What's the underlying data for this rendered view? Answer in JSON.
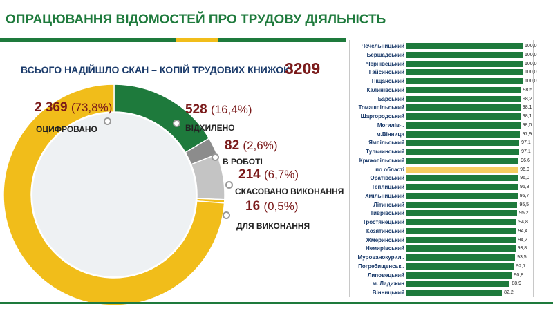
{
  "title": "ОПРАЦЮВАННЯ ВІДОМОСТЕЙ ПРО ТРУДОВУ ДІЯЛЬНІСТЬ",
  "total": {
    "label": "ВСЬОГО НАДІЙШЛО СКАН – КОПІЙ ТРУДОВИХ КНИЖОК",
    "value": "3209"
  },
  "colors": {
    "green": "#1e7a3c",
    "yellow": "#f1bd1a",
    "gray": "#8c8c8c",
    "lightgray": "#c4c4c4",
    "highlight": "#f6cd60",
    "title_bar": [
      "#1e7a3c",
      "#f1bd1a",
      "#1e7a3c"
    ]
  },
  "chart_data": [
    {
      "type": "pie",
      "variant": "donut",
      "slices": [
        {
          "label": "ОЦИФРОВАНО",
          "count": 2369,
          "count_text": "2 369",
          "percent": 73.8,
          "percent_text": "(73,8%)",
          "color": "#f1bd1a"
        },
        {
          "label": "ВІДХИЛЕНО",
          "count": 528,
          "count_text": "528",
          "percent": 16.4,
          "percent_text": "(16,4%)",
          "color": "#1e7a3c"
        },
        {
          "label": "В РОБОТІ",
          "count": 82,
          "count_text": "82",
          "percent": 2.6,
          "percent_text": "(2,6%)",
          "color": "#8c8c8c"
        },
        {
          "label": "СКАСОВАНО ВИКОНАННЯ",
          "count": 214,
          "count_text": "214",
          "percent": 6.7,
          "percent_text": "(6,7%)",
          "color": "#c4c4c4"
        },
        {
          "label": "ДЛЯ ВИКОНАННЯ",
          "count": 16,
          "count_text": "16",
          "percent": 0.5,
          "percent_text": "(0,5%)",
          "color": "#f1bd1a"
        }
      ]
    },
    {
      "type": "bar",
      "orientation": "horizontal",
      "xlim": [
        0,
        100
      ],
      "highlight": "по області",
      "categories": [
        "Чечельницький",
        "Бершадський",
        "Чернівецький",
        "Гайсинський",
        "Піщанський",
        "Калинівський",
        "Барський",
        "Томашпільський",
        "Шаргородський",
        "Могилів-..",
        "м.Вінниця",
        "Ямпільський",
        "Тульчинський",
        "Крижопільський",
        "по області",
        "Оратівський",
        "Теплицький",
        "Хмільницький",
        "Літинський",
        "Тиврівський",
        "Тростянецький",
        "Козятинський",
        "Жмеринський",
        "Немирівський",
        "Мурованокурил..",
        "Погребищенськ..",
        "Липовецький",
        "м. Ладижин",
        "Вінницький"
      ],
      "values": [
        100.0,
        100.0,
        100.0,
        100.0,
        100.0,
        98.5,
        98.2,
        98.1,
        98.1,
        98.0,
        97.9,
        97.1,
        97.1,
        96.6,
        96.0,
        96.0,
        95.8,
        95.7,
        95.5,
        95.2,
        94.8,
        94.4,
        94.2,
        93.8,
        93.5,
        92.7,
        90.8,
        88.9,
        82.2
      ],
      "value_labels": [
        "100,0",
        "100,0",
        "100,0",
        "100,0",
        "100,0",
        "98,5",
        "98,2",
        "98,1",
        "98,1",
        "98,0",
        "97,9",
        "97,1",
        "97,1",
        "96,6",
        "96,0",
        "96,0",
        "95,8",
        "95,7",
        "95,5",
        "95,2",
        "94,8",
        "94,4",
        "94,2",
        "93,8",
        "93,5",
        "92,7",
        "90,8",
        "88,9",
        "82,2"
      ]
    }
  ]
}
